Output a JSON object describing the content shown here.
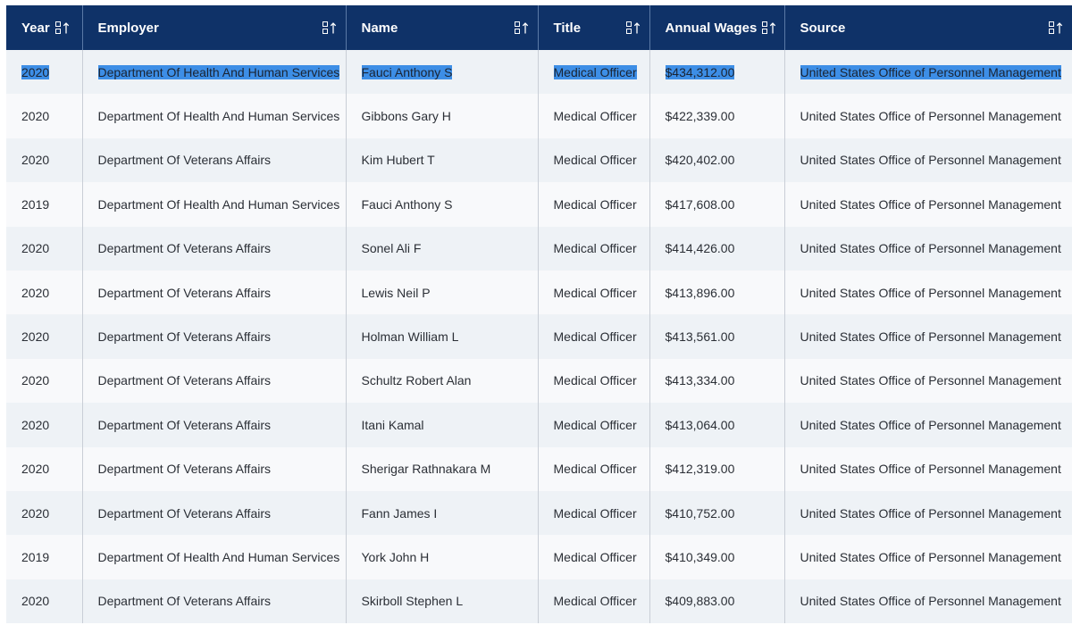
{
  "table": {
    "columns": [
      {
        "label": "Year",
        "icon": "sort-icon"
      },
      {
        "label": "Employer",
        "icon": "sort-icon"
      },
      {
        "label": "Name",
        "icon": "sort-icon"
      },
      {
        "label": "Title",
        "icon": "sort-icon"
      },
      {
        "label": "Annual Wages",
        "icon": "sort-icon"
      },
      {
        "label": "Source",
        "icon": "sort-icon"
      }
    ],
    "rows": [
      [
        "2020",
        "Department Of Health And Human Services",
        "Fauci Anthony S",
        "Medical Officer",
        "$434,312.00",
        "United States Office of Personnel Management"
      ],
      [
        "2020",
        "Department Of Health And Human Services",
        "Gibbons Gary H",
        "Medical Officer",
        "$422,339.00",
        "United States Office of Personnel Management"
      ],
      [
        "2020",
        "Department Of Veterans Affairs",
        "Kim Hubert T",
        "Medical Officer",
        "$420,402.00",
        "United States Office of Personnel Management"
      ],
      [
        "2019",
        "Department Of Health And Human Services",
        "Fauci Anthony S",
        "Medical Officer",
        "$417,608.00",
        "United States Office of Personnel Management"
      ],
      [
        "2020",
        "Department Of Veterans Affairs",
        "Sonel Ali F",
        "Medical Officer",
        "$414,426.00",
        "United States Office of Personnel Management"
      ],
      [
        "2020",
        "Department Of Veterans Affairs",
        "Lewis Neil P",
        "Medical Officer",
        "$413,896.00",
        "United States Office of Personnel Management"
      ],
      [
        "2020",
        "Department Of Veterans Affairs",
        "Holman William L",
        "Medical Officer",
        "$413,561.00",
        "United States Office of Personnel Management"
      ],
      [
        "2020",
        "Department Of Veterans Affairs",
        "Schultz Robert Alan",
        "Medical Officer",
        "$413,334.00",
        "United States Office of Personnel Management"
      ],
      [
        "2020",
        "Department Of Veterans Affairs",
        "Itani Kamal",
        "Medical Officer",
        "$413,064.00",
        "United States Office of Personnel Management"
      ],
      [
        "2020",
        "Department Of Veterans Affairs",
        "Sherigar Rathnakara M",
        "Medical Officer",
        "$412,319.00",
        "United States Office of Personnel Management"
      ],
      [
        "2020",
        "Department Of Veterans Affairs",
        "Fann James I",
        "Medical Officer",
        "$410,752.00",
        "United States Office of Personnel Management"
      ],
      [
        "2019",
        "Department Of Health And Human Services",
        "York John H",
        "Medical Officer",
        "$410,349.00",
        "United States Office of Personnel Management"
      ],
      [
        "2020",
        "Department Of Veterans Affairs",
        "Skirboll Stephen L",
        "Medical Officer",
        "$409,883.00",
        "United States Office of Personnel Management"
      ]
    ],
    "selected_row": 0
  },
  "colors": {
    "header_bg": "#0f3268",
    "header_text": "#ffffff",
    "row_alt_a": "#eef2f6",
    "row_alt_b": "#f8f9fb",
    "selection": "#3d8ee6"
  }
}
